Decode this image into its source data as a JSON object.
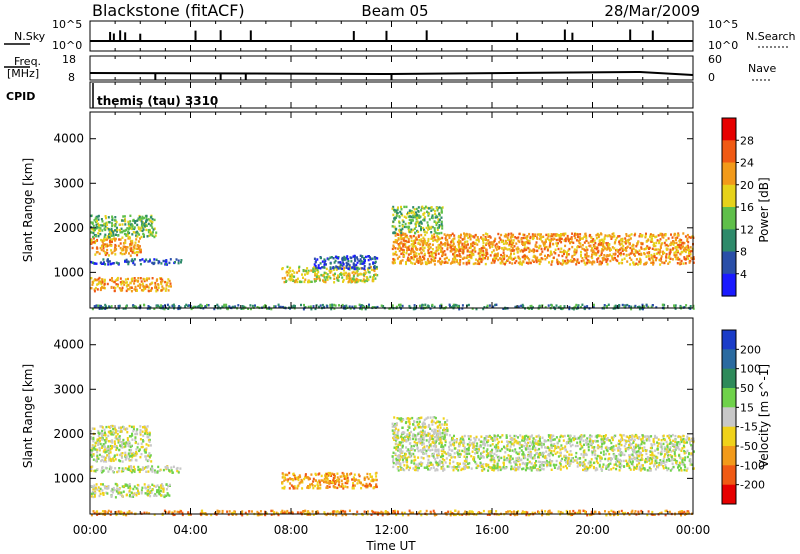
{
  "header": {
    "station": "Blackstone (fitACF)",
    "beam": "Beam 05",
    "date": "28/Mar/2009"
  },
  "housekeeping": {
    "nsky_label": "N.Sky",
    "nsearch_label": "N.Search",
    "nsky_ticks": [
      "10^5",
      "10^0"
    ],
    "nsearch_ticks": [
      "10^5",
      "10^0"
    ],
    "freq_label_1": "Freq.",
    "freq_label_2": "[MHz]",
    "freq_ticks": [
      "18",
      "8"
    ],
    "nave_label": "Nave",
    "nave_ticks": [
      "60",
      "0"
    ],
    "cpid_label": "CPID",
    "cpid_value": "themis (tau) 3310"
  },
  "chart_data": [
    {
      "type": "heatmap",
      "panel": "power",
      "ylabel": "Slant Range [km]",
      "yticks": [
        "1000",
        "2000",
        "3000",
        "4000"
      ],
      "ylim": [
        200,
        4600
      ],
      "xlim": [
        0,
        24
      ],
      "colorbar_label": "Power [dB]",
      "colorbar_ticks": [
        "4",
        "8",
        "12",
        "16",
        "20",
        "24",
        "28"
      ],
      "colorbar_colors": [
        "#1a1aff",
        "#2a4fa8",
        "#2e8a6a",
        "#5fbf4a",
        "#e6d21a",
        "#f29a1a",
        "#f05a14",
        "#e60000"
      ],
      "echo_regions": [
        {
          "t0": 0.0,
          "t1": 2.0,
          "r0": 1400,
          "r1": 1800,
          "level": 5
        },
        {
          "t0": 0.0,
          "t1": 2.6,
          "r0": 1800,
          "r1": 2300,
          "level": 3
        },
        {
          "t0": 0.0,
          "t1": 3.6,
          "r0": 1200,
          "r1": 1320,
          "level": 1
        },
        {
          "t0": 0.0,
          "t1": 3.2,
          "r0": 600,
          "r1": 900,
          "level": 5
        },
        {
          "t0": 7.6,
          "t1": 11.4,
          "r0": 800,
          "r1": 1150,
          "level": 4
        },
        {
          "t0": 8.9,
          "t1": 11.4,
          "r0": 1100,
          "r1": 1400,
          "level": 1
        },
        {
          "t0": 12.0,
          "t1": 24.0,
          "r0": 1200,
          "r1": 1900,
          "level": 5
        },
        {
          "t0": 12.0,
          "t1": 14.0,
          "r0": 1900,
          "r1": 2500,
          "level": 3
        },
        {
          "t0": 0.0,
          "t1": 24.0,
          "r0": 200,
          "r1": 300,
          "level": 2
        }
      ]
    },
    {
      "type": "heatmap",
      "panel": "velocity",
      "ylabel": "Slant Range [km]",
      "yticks": [
        "1000",
        "2000",
        "3000",
        "4000"
      ],
      "ylim": [
        200,
        4600
      ],
      "xlim": [
        0,
        24
      ],
      "xlabel": "Time UT",
      "xticks": [
        "00:00",
        "04:00",
        "08:00",
        "12:00",
        "16:00",
        "20:00",
        "00:00"
      ],
      "colorbar_label": "Velocity [m s^-1]",
      "colorbar_ticks": [
        "200",
        "100",
        "50",
        "15",
        "-15",
        "-50",
        "-100",
        "-200"
      ],
      "colorbar_colors": [
        "#1a3cc8",
        "#2a6aa0",
        "#2e8a5a",
        "#6fd24a",
        "#c8c8c8",
        "#f0d21a",
        "#f29a1a",
        "#f05a14",
        "#e60000"
      ],
      "echo_regions": [
        {
          "t0": 0.0,
          "t1": 2.4,
          "r0": 1400,
          "r1": 2200,
          "level": 4
        },
        {
          "t0": 0.0,
          "t1": 3.6,
          "r0": 1150,
          "r1": 1300,
          "level": 4
        },
        {
          "t0": 0.0,
          "t1": 3.2,
          "r0": 600,
          "r1": 900,
          "level": 4
        },
        {
          "t0": 7.6,
          "t1": 11.4,
          "r0": 800,
          "r1": 1150,
          "level": 6
        },
        {
          "t0": 12.0,
          "t1": 24.0,
          "r0": 1200,
          "r1": 2000,
          "level": 4
        },
        {
          "t0": 12.0,
          "t1": 14.2,
          "r0": 1900,
          "r1": 2400,
          "level": 4
        },
        {
          "t0": 0.0,
          "t1": 24.0,
          "r0": 200,
          "r1": 300,
          "level": 6
        }
      ]
    }
  ]
}
